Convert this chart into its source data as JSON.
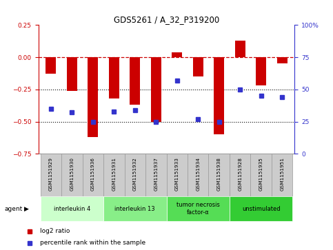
{
  "title": "GDS5261 / A_32_P319200",
  "samples": [
    "GSM1151929",
    "GSM1151930",
    "GSM1151936",
    "GSM1151931",
    "GSM1151932",
    "GSM1151937",
    "GSM1151933",
    "GSM1151934",
    "GSM1151938",
    "GSM1151928",
    "GSM1151935",
    "GSM1151951"
  ],
  "log2_ratio": [
    -0.13,
    -0.26,
    -0.62,
    -0.32,
    -0.37,
    -0.5,
    0.035,
    -0.15,
    -0.6,
    0.13,
    -0.22,
    -0.05
  ],
  "percentile": [
    35,
    32,
    25,
    33,
    34,
    25,
    57,
    27,
    25,
    50,
    45,
    44
  ],
  "bar_color": "#cc0000",
  "dot_color": "#3333cc",
  "ref_line_color": "#cc0000",
  "dotted_line_color": "#000000",
  "ylim_left": [
    -0.75,
    0.25
  ],
  "ylim_right": [
    0,
    100
  ],
  "yticks_left": [
    -0.75,
    -0.5,
    -0.25,
    0.0,
    0.25
  ],
  "yticks_right": [
    0,
    25,
    50,
    75,
    100
  ],
  "agents": [
    {
      "label": "interleukin 4",
      "indices": [
        0,
        1,
        2
      ],
      "color": "#ccffcc"
    },
    {
      "label": "interleukin 13",
      "indices": [
        3,
        4,
        5
      ],
      "color": "#88ee88"
    },
    {
      "label": "tumor necrosis\nfactor-α",
      "indices": [
        6,
        7,
        8
      ],
      "color": "#55dd55"
    },
    {
      "label": "unstimulated",
      "indices": [
        9,
        10,
        11
      ],
      "color": "#33cc33"
    }
  ],
  "bg_color": "#ffffff",
  "plot_bg": "#ffffff",
  "bar_width": 0.5,
  "sample_box_color": "#cccccc",
  "sample_box_border": "#999999"
}
